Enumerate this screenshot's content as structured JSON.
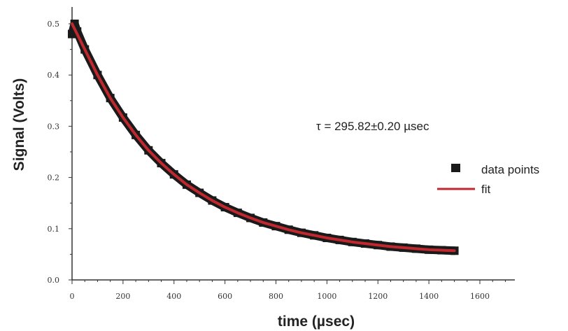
{
  "chart_data": {
    "type": "scatter",
    "title": "",
    "xlabel": "time (µsec)",
    "ylabel": "Signal (Volts)",
    "xlim": [
      0,
      1700
    ],
    "ylim": [
      0,
      0.53
    ],
    "xticks": [
      0,
      200,
      400,
      600,
      800,
      1000,
      1200,
      1400,
      1600
    ],
    "yticks": [
      0.0,
      0.1,
      0.2,
      0.3,
      0.4,
      0.5
    ],
    "xtick_labels": [
      "0",
      "200",
      "400",
      "600",
      "800",
      "1000",
      "1200",
      "1400",
      "1600"
    ],
    "ytick_labels": [
      "0.0",
      "0.1",
      "0.2",
      "0.3",
      "0.4",
      "0.5"
    ],
    "grid": false,
    "legend_position": "right",
    "annotation": "τ = 295.82±0.20 µsec",
    "series": [
      {
        "name": "data points",
        "kind": "scatter",
        "color": "#1a1a1a",
        "x": [
          0,
          10,
          20,
          50,
          100,
          150,
          200,
          250,
          300,
          350,
          400,
          450,
          500,
          550,
          600,
          650,
          700,
          750,
          800,
          850,
          900,
          950,
          1000,
          1050,
          1100,
          1150,
          1200,
          1250,
          1300,
          1350,
          1400,
          1450,
          1500
        ],
        "y": [
          0.48,
          0.5,
          0.485,
          0.45,
          0.4,
          0.355,
          0.317,
          0.283,
          0.253,
          0.228,
          0.206,
          0.186,
          0.17,
          0.155,
          0.142,
          0.131,
          0.121,
          0.112,
          0.105,
          0.098,
          0.092,
          0.087,
          0.082,
          0.078,
          0.074,
          0.071,
          0.068,
          0.065,
          0.063,
          0.061,
          0.059,
          0.058,
          0.057
        ]
      },
      {
        "name": "fit",
        "kind": "line",
        "color": "#c0282f",
        "x": [
          0,
          50,
          100,
          150,
          200,
          250,
          300,
          350,
          400,
          450,
          500,
          550,
          600,
          650,
          700,
          750,
          800,
          850,
          900,
          950,
          1000,
          1050,
          1100,
          1150,
          1200,
          1250,
          1300,
          1350,
          1400,
          1450,
          1500
        ],
        "y": [
          0.5,
          0.45,
          0.4,
          0.355,
          0.317,
          0.283,
          0.253,
          0.228,
          0.206,
          0.186,
          0.17,
          0.155,
          0.142,
          0.131,
          0.121,
          0.112,
          0.105,
          0.098,
          0.092,
          0.087,
          0.082,
          0.078,
          0.074,
          0.071,
          0.068,
          0.065,
          0.063,
          0.061,
          0.059,
          0.058,
          0.057
        ]
      }
    ]
  }
}
